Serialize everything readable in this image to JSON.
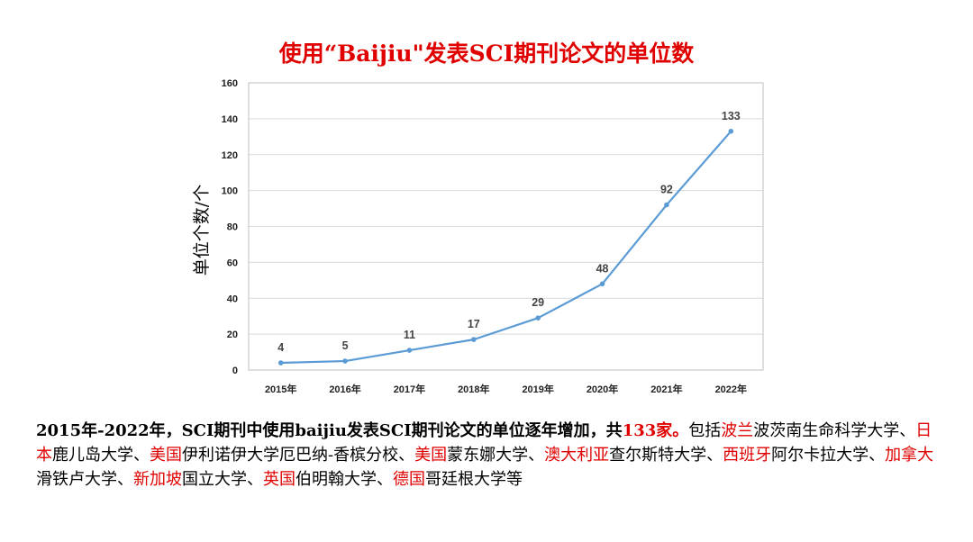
{
  "title": "使用“Baijiu\"发表SCI期刊论文的单位数",
  "colors": {
    "title": "#e00000",
    "line": "#5b9bd5",
    "highlight": "#e00000",
    "grid": "#d9d9d9"
  },
  "chart_data": {
    "type": "line",
    "categories": [
      "2015年",
      "2016年",
      "2017年",
      "2018年",
      "2019年",
      "2020年",
      "2021年",
      "2022年"
    ],
    "values": [
      4,
      5,
      11,
      17,
      29,
      48,
      92,
      133
    ],
    "ylabel": "单位个数/个",
    "xlabel": "",
    "ylim": [
      0,
      160
    ],
    "yticks": [
      0,
      20,
      40,
      60,
      80,
      100,
      120,
      140,
      160
    ],
    "grid": true,
    "data_labels": true,
    "legend": "none"
  },
  "caption": {
    "lead": "2015年-2022年，SCI期刊中使用baijiu发表SCI期刊论文的单位逐年增加，共",
    "total": "133家。",
    "intro": "包括",
    "entries": [
      {
        "country": "波兰",
        "institution": "波茨南生命科学大学"
      },
      {
        "country": "日本",
        "institution": "鹿儿岛大学"
      },
      {
        "country": "美国",
        "institution": "伊利诺伊大学厄巴纳-香槟分校"
      },
      {
        "country": "美国",
        "institution": "蒙东娜大学"
      },
      {
        "country": "澳大利亚",
        "institution": "查尔斯特大学"
      },
      {
        "country": "西班牙",
        "institution": "阿尔卡拉大学"
      },
      {
        "country": "加拿大",
        "institution": "滑铁卢大学"
      },
      {
        "country": "新加坡",
        "institution": "国立大学"
      },
      {
        "country": "英国",
        "institution": "伯明翰大学"
      },
      {
        "country": "德国",
        "institution": "哥廷根大学"
      }
    ],
    "separator": "、",
    "ending": "等"
  }
}
